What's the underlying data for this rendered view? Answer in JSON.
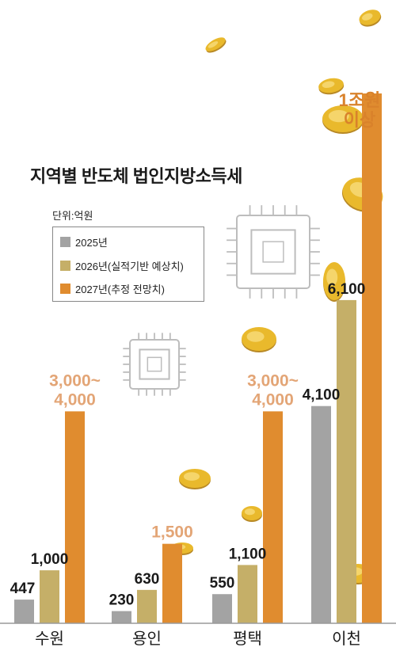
{
  "chart_data": {
    "type": "bar",
    "title": "지역별 반도체 법인지방소득세",
    "unit": "단위:억원",
    "categories": [
      "수원",
      "용인",
      "평택",
      "이천"
    ],
    "series": [
      {
        "name": "2025년",
        "color": "#a3a3a3",
        "values": [
          447,
          230,
          550,
          4100
        ],
        "labels": [
          "447",
          "230",
          "550",
          "4,100"
        ],
        "label_color": "#1a1a1a"
      },
      {
        "name": "2026년(실적기반 예상치)",
        "color": "#c5af68",
        "values": [
          1000,
          630,
          1100,
          6100
        ],
        "labels": [
          "1,000",
          "630",
          "1,100",
          "6,100"
        ],
        "label_color": "#1a1a1a"
      },
      {
        "name": "2027년(추정 전망치)",
        "color": "#e08c2f",
        "values": [
          4000,
          1500,
          4000,
          10000
        ],
        "labels": [
          "3,000~\n4,000",
          "1,500",
          "3,000~\n4,000",
          ""
        ],
        "label_color": "#e3a576"
      }
    ],
    "annotations": [
      "1조원",
      "이상"
    ]
  }
}
